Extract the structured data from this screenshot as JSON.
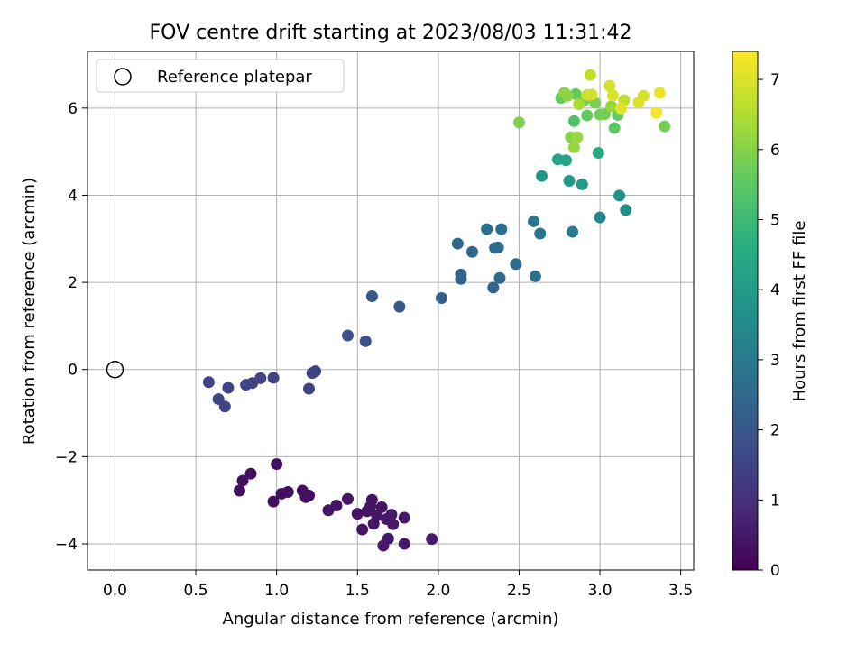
{
  "chart_data": {
    "type": "scatter",
    "title": "FOV centre drift starting at 2023/08/03 11:31:42",
    "xlabel": "Angular distance from reference (arcmin)",
    "ylabel": "Rotation from reference (arcmin)",
    "xlim": [
      -0.17,
      3.58
    ],
    "ylim": [
      -4.6,
      7.3
    ],
    "xticks": [
      0.0,
      0.5,
      1.0,
      1.5,
      2.0,
      2.5,
      3.0,
      3.5
    ],
    "xtick_labels": [
      "0.0",
      "0.5",
      "1.0",
      "1.5",
      "2.0",
      "2.5",
      "3.0",
      "3.5"
    ],
    "yticks": [
      -4,
      -2,
      0,
      2,
      4,
      6
    ],
    "ytick_labels": [
      "−4",
      "−2",
      "0",
      "2",
      "4",
      "6"
    ],
    "grid": true,
    "legend": {
      "placement": "top-left",
      "label": "Reference platepar"
    },
    "reference_point": {
      "x": 0.0,
      "y": 0.0
    },
    "colorbar": {
      "label": "Hours from first FF file",
      "colormap": "viridis",
      "range": [
        0,
        7.4
      ],
      "ticks": [
        0,
        1,
        2,
        3,
        4,
        5,
        6,
        7
      ],
      "tick_labels": [
        "0",
        "1",
        "2",
        "3",
        "4",
        "5",
        "6",
        "7"
      ]
    },
    "points": [
      {
        "x": 0.77,
        "y": -2.78,
        "c": 0.3
      },
      {
        "x": 0.79,
        "y": -2.55,
        "c": 0.3
      },
      {
        "x": 0.84,
        "y": -2.39,
        "c": 0.3
      },
      {
        "x": 0.98,
        "y": -3.03,
        "c": 0.3
      },
      {
        "x": 1.0,
        "y": -2.17,
        "c": 0.3
      },
      {
        "x": 1.03,
        "y": -2.85,
        "c": 0.3
      },
      {
        "x": 1.07,
        "y": -2.81,
        "c": 0.3
      },
      {
        "x": 1.16,
        "y": -2.78,
        "c": 0.3
      },
      {
        "x": 1.18,
        "y": -2.93,
        "c": 0.3
      },
      {
        "x": 1.2,
        "y": -2.89,
        "c": 0.3
      },
      {
        "x": 1.32,
        "y": -3.23,
        "c": 0.4
      },
      {
        "x": 1.37,
        "y": -3.12,
        "c": 0.4
      },
      {
        "x": 1.44,
        "y": -2.97,
        "c": 0.4
      },
      {
        "x": 1.5,
        "y": -3.31,
        "c": 0.4
      },
      {
        "x": 1.53,
        "y": -3.67,
        "c": 0.4
      },
      {
        "x": 1.56,
        "y": -3.25,
        "c": 0.4
      },
      {
        "x": 1.58,
        "y": -3.14,
        "c": 0.4
      },
      {
        "x": 1.59,
        "y": -2.99,
        "c": 0.4
      },
      {
        "x": 1.6,
        "y": -3.54,
        "c": 0.4
      },
      {
        "x": 1.62,
        "y": -3.35,
        "c": 0.4
      },
      {
        "x": 1.65,
        "y": -3.16,
        "c": 0.4
      },
      {
        "x": 1.66,
        "y": -4.04,
        "c": 0.5
      },
      {
        "x": 1.68,
        "y": -3.43,
        "c": 0.5
      },
      {
        "x": 1.69,
        "y": -3.88,
        "c": 0.5
      },
      {
        "x": 1.71,
        "y": -3.33,
        "c": 0.5
      },
      {
        "x": 1.72,
        "y": -3.55,
        "c": 0.5
      },
      {
        "x": 1.79,
        "y": -3.4,
        "c": 0.5
      },
      {
        "x": 1.79,
        "y": -4.0,
        "c": 0.5
      },
      {
        "x": 1.96,
        "y": -3.89,
        "c": 0.5
      },
      {
        "x": 0.58,
        "y": -0.29,
        "c": 1.5
      },
      {
        "x": 0.64,
        "y": -0.68,
        "c": 1.5
      },
      {
        "x": 0.68,
        "y": -0.85,
        "c": 1.5
      },
      {
        "x": 0.7,
        "y": -0.42,
        "c": 1.5
      },
      {
        "x": 0.81,
        "y": -0.35,
        "c": 1.5
      },
      {
        "x": 0.85,
        "y": -0.31,
        "c": 1.5
      },
      {
        "x": 0.9,
        "y": -0.2,
        "c": 1.5
      },
      {
        "x": 0.98,
        "y": -0.19,
        "c": 1.5
      },
      {
        "x": 1.2,
        "y": -0.44,
        "c": 1.5
      },
      {
        "x": 1.22,
        "y": -0.08,
        "c": 1.5
      },
      {
        "x": 1.24,
        "y": -0.04,
        "c": 1.5
      },
      {
        "x": 1.44,
        "y": 0.78,
        "c": 1.8
      },
      {
        "x": 1.55,
        "y": 0.65,
        "c": 1.8
      },
      {
        "x": 1.59,
        "y": 1.68,
        "c": 2.0
      },
      {
        "x": 1.76,
        "y": 1.44,
        "c": 2.0
      },
      {
        "x": 2.02,
        "y": 1.64,
        "c": 2.2
      },
      {
        "x": 2.12,
        "y": 2.89,
        "c": 2.5
      },
      {
        "x": 2.14,
        "y": 2.08,
        "c": 2.3
      },
      {
        "x": 2.14,
        "y": 2.18,
        "c": 2.3
      },
      {
        "x": 2.21,
        "y": 2.7,
        "c": 2.5
      },
      {
        "x": 2.3,
        "y": 3.22,
        "c": 2.7
      },
      {
        "x": 2.34,
        "y": 1.88,
        "c": 2.4
      },
      {
        "x": 2.35,
        "y": 2.79,
        "c": 2.6
      },
      {
        "x": 2.37,
        "y": 2.8,
        "c": 2.6
      },
      {
        "x": 2.38,
        "y": 2.1,
        "c": 2.5
      },
      {
        "x": 2.39,
        "y": 3.22,
        "c": 2.7
      },
      {
        "x": 2.48,
        "y": 2.42,
        "c": 2.6
      },
      {
        "x": 2.59,
        "y": 3.4,
        "c": 2.9
      },
      {
        "x": 2.6,
        "y": 2.14,
        "c": 2.7
      },
      {
        "x": 2.63,
        "y": 3.12,
        "c": 2.9
      },
      {
        "x": 2.83,
        "y": 3.16,
        "c": 3.0
      },
      {
        "x": 3.0,
        "y": 3.49,
        "c": 3.4
      },
      {
        "x": 3.12,
        "y": 3.99,
        "c": 3.7
      },
      {
        "x": 3.16,
        "y": 3.66,
        "c": 3.6
      },
      {
        "x": 2.64,
        "y": 4.44,
        "c": 3.9
      },
      {
        "x": 2.74,
        "y": 4.82,
        "c": 4.3
      },
      {
        "x": 2.79,
        "y": 4.8,
        "c": 4.3
      },
      {
        "x": 2.81,
        "y": 4.33,
        "c": 4.0
      },
      {
        "x": 2.89,
        "y": 4.25,
        "c": 4.0
      },
      {
        "x": 2.99,
        "y": 4.97,
        "c": 4.5
      },
      {
        "x": 2.5,
        "y": 5.67,
        "c": 5.9
      },
      {
        "x": 2.82,
        "y": 5.33,
        "c": 6.0
      },
      {
        "x": 2.84,
        "y": 5.1,
        "c": 6.2
      },
      {
        "x": 2.84,
        "y": 5.7,
        "c": 5.3
      },
      {
        "x": 2.86,
        "y": 5.33,
        "c": 6.2
      },
      {
        "x": 2.76,
        "y": 6.23,
        "c": 5.6
      },
      {
        "x": 2.78,
        "y": 6.35,
        "c": 6.1
      },
      {
        "x": 2.8,
        "y": 6.28,
        "c": 6.1
      },
      {
        "x": 2.85,
        "y": 6.32,
        "c": 5.6
      },
      {
        "x": 2.87,
        "y": 6.09,
        "c": 6.4
      },
      {
        "x": 2.9,
        "y": 6.17,
        "c": 5.8
      },
      {
        "x": 2.92,
        "y": 5.83,
        "c": 5.6
      },
      {
        "x": 2.92,
        "y": 6.3,
        "c": 6.8
      },
      {
        "x": 2.94,
        "y": 6.76,
        "c": 6.7
      },
      {
        "x": 2.95,
        "y": 6.31,
        "c": 6.9
      },
      {
        "x": 2.97,
        "y": 6.12,
        "c": 5.9
      },
      {
        "x": 3.0,
        "y": 5.85,
        "c": 5.8
      },
      {
        "x": 3.03,
        "y": 5.86,
        "c": 5.8
      },
      {
        "x": 3.06,
        "y": 6.51,
        "c": 6.9
      },
      {
        "x": 3.07,
        "y": 6.04,
        "c": 6.2
      },
      {
        "x": 3.08,
        "y": 6.29,
        "c": 7.0
      },
      {
        "x": 3.09,
        "y": 5.54,
        "c": 5.5
      },
      {
        "x": 3.11,
        "y": 5.84,
        "c": 5.6
      },
      {
        "x": 3.13,
        "y": 5.99,
        "c": 7.1
      },
      {
        "x": 3.15,
        "y": 6.18,
        "c": 6.7
      },
      {
        "x": 3.24,
        "y": 6.13,
        "c": 7.0
      },
      {
        "x": 3.27,
        "y": 6.28,
        "c": 6.9
      },
      {
        "x": 3.35,
        "y": 5.89,
        "c": 7.3
      },
      {
        "x": 3.37,
        "y": 6.35,
        "c": 7.2
      },
      {
        "x": 3.4,
        "y": 5.58,
        "c": 5.8
      }
    ]
  }
}
